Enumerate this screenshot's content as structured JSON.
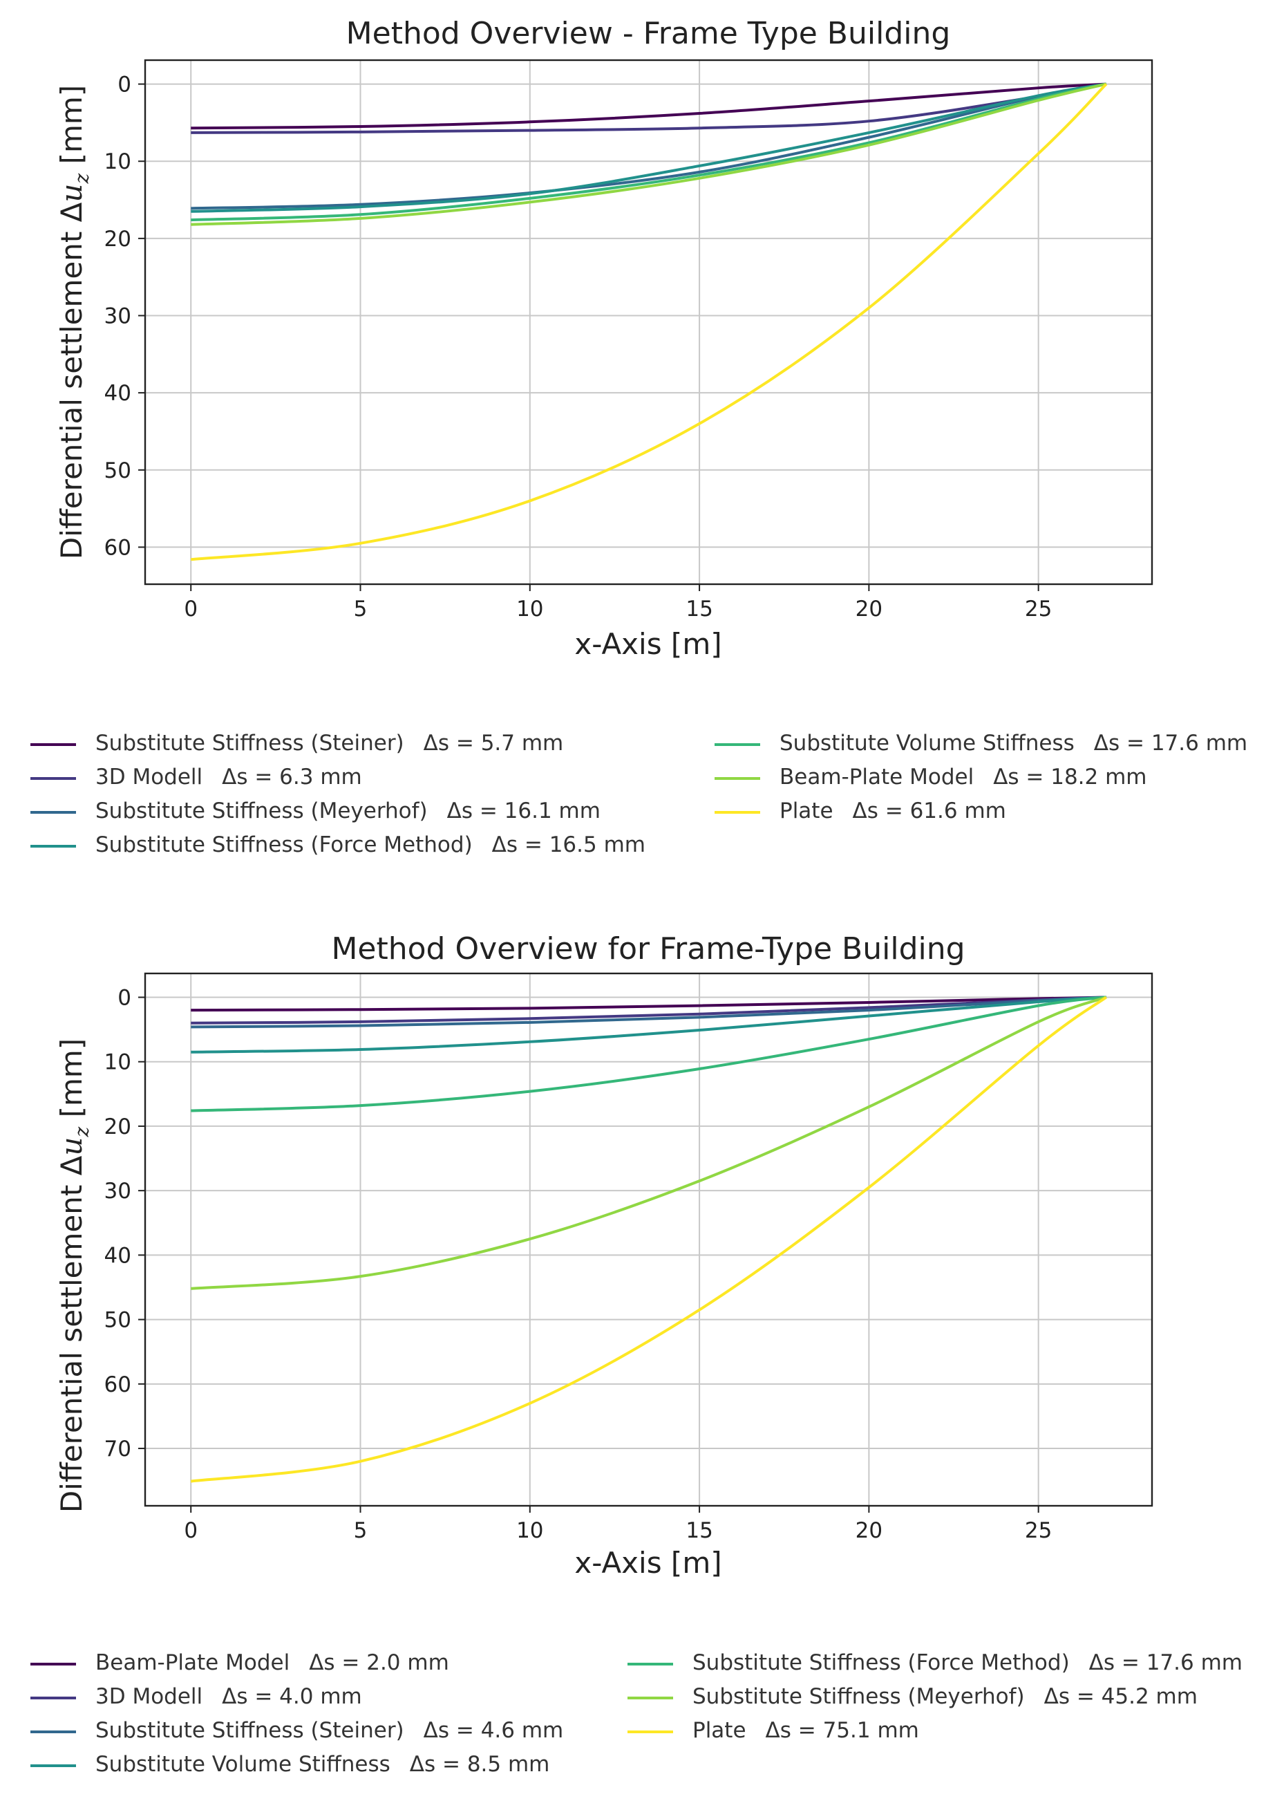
{
  "charts": [
    {
      "legend_left": [
        {
          "label": "Substitute Stiffness (Steiner)",
          "metric": "Δs = 5.7 mm"
        },
        {
          "label": "3D Modell",
          "metric": "Δs = 6.3 mm"
        },
        {
          "label": "Substitute Stiffness (Meyerhof)",
          "metric": "Δs = 16.1 mm"
        },
        {
          "label": "Substitute Stiffness (Force Method)",
          "metric": "Δs = 16.5 mm"
        }
      ],
      "legend_right": [
        {
          "label": "Substitute Volume Stiffness",
          "metric": "Δs = 17.6 mm"
        },
        {
          "label": "Beam-Plate Model",
          "metric": "Δs = 18.2 mm"
        },
        {
          "label": "Plate",
          "metric": "Δs = 61.6 mm"
        }
      ]
    },
    {
      "legend_left": [
        {
          "label": "Beam-Plate Model",
          "metric": "Δs = 2.0 mm"
        },
        {
          "label": "3D Modell",
          "metric": "Δs = 4.0 mm"
        },
        {
          "label": "Substitute Stiffness (Steiner)",
          "metric": "Δs = 4.6 mm"
        },
        {
          "label": "Substitute Volume Stiffness",
          "metric": "Δs = 8.5 mm"
        }
      ],
      "legend_right": [
        {
          "label": "Substitute Stiffness (Force Method)",
          "metric": "Δs = 17.6 mm"
        },
        {
          "label": "Substitute Stiffness (Meyerhof)",
          "metric": "Δs = 45.2 mm"
        },
        {
          "label": "Plate",
          "metric": "Δs = 75.1 mm"
        }
      ]
    }
  ],
  "chart_data": [
    {
      "type": "line",
      "title": "Method Overview - Frame Type Building",
      "xlabel": "x-Axis [m]",
      "ylabel": "Differential settlement Δu_z [mm]",
      "xlim": [
        -1.35,
        28.35
      ],
      "ylim": [
        64.8,
        -3.1
      ],
      "y_inverted": true,
      "grid": true,
      "xticks": [
        0,
        5,
        10,
        15,
        20,
        25
      ],
      "yticks": [
        0,
        10,
        20,
        30,
        40,
        50,
        60
      ],
      "legend_position": "below",
      "series": [
        {
          "name": "Substitute Stiffness (Steiner)",
          "color": "#440154",
          "x": [
            0,
            5,
            10,
            15,
            20,
            25,
            27
          ],
          "y": [
            5.7,
            5.5,
            4.9,
            3.8,
            2.2,
            0.5,
            0
          ]
        },
        {
          "name": "3D Modell",
          "color": "#443983",
          "x": [
            0,
            5,
            10,
            15,
            20,
            25,
            27
          ],
          "y": [
            6.3,
            6.2,
            6.0,
            5.7,
            4.8,
            1.6,
            0
          ]
        },
        {
          "name": "Substitute Stiffness (Meyerhof)",
          "color": "#31688e",
          "x": [
            0,
            5,
            10,
            15,
            20,
            25,
            27
          ],
          "y": [
            16.1,
            15.6,
            14.1,
            11.4,
            6.9,
            1.6,
            0
          ]
        },
        {
          "name": "Substitute Stiffness (Force Method)",
          "color": "#21918c",
          "x": [
            0,
            5,
            10,
            15,
            20,
            25,
            27
          ],
          "y": [
            16.5,
            15.9,
            14.2,
            10.6,
            6.3,
            1.5,
            0
          ]
        },
        {
          "name": "Substitute Volume Stiffness",
          "color": "#35b779",
          "x": [
            0,
            5,
            10,
            15,
            20,
            25,
            27
          ],
          "y": [
            17.6,
            16.9,
            14.8,
            11.8,
            7.6,
            1.9,
            0
          ]
        },
        {
          "name": "Beam-Plate Model",
          "color": "#90d743",
          "x": [
            0,
            5,
            10,
            15,
            20,
            25,
            27
          ],
          "y": [
            18.2,
            17.4,
            15.3,
            12.2,
            7.9,
            2.1,
            0
          ]
        },
        {
          "name": "Plate",
          "color": "#fde725",
          "x": [
            0,
            5,
            10,
            15,
            20,
            25,
            27
          ],
          "y": [
            61.6,
            59.5,
            54.0,
            44.0,
            29.0,
            9.0,
            0
          ]
        }
      ]
    },
    {
      "type": "line",
      "title": "Method Overview for Frame-Type Building",
      "xlabel": "x-Axis [m]",
      "ylabel": "Differential settlement Δu_z [mm]",
      "xlim": [
        -1.35,
        28.35
      ],
      "ylim": [
        78.9,
        -3.7
      ],
      "y_inverted": true,
      "grid": true,
      "xticks": [
        0,
        5,
        10,
        15,
        20,
        25
      ],
      "yticks": [
        0,
        10,
        20,
        30,
        40,
        50,
        60,
        70
      ],
      "legend_position": "below",
      "series": [
        {
          "name": "Beam-Plate Model",
          "color": "#440154",
          "x": [
            0,
            5,
            10,
            15,
            20,
            25,
            27
          ],
          "y": [
            2.0,
            1.9,
            1.7,
            1.3,
            0.8,
            0.2,
            0
          ]
        },
        {
          "name": "3D Modell",
          "color": "#443983",
          "x": [
            0,
            5,
            10,
            15,
            20,
            25,
            27
          ],
          "y": [
            4.0,
            3.8,
            3.3,
            2.6,
            1.6,
            0.4,
            0
          ]
        },
        {
          "name": "Substitute Stiffness (Steiner)",
          "color": "#31688e",
          "x": [
            0,
            5,
            10,
            15,
            20,
            25,
            27
          ],
          "y": [
            4.6,
            4.4,
            3.9,
            3.1,
            2.0,
            0.5,
            0
          ]
        },
        {
          "name": "Substitute Volume Stiffness",
          "color": "#21918c",
          "x": [
            0,
            5,
            10,
            15,
            20,
            25,
            27
          ],
          "y": [
            8.5,
            8.1,
            6.9,
            5.1,
            2.9,
            0.7,
            0
          ]
        },
        {
          "name": "Substitute Stiffness (Force Method)",
          "color": "#35b779",
          "x": [
            0,
            5,
            10,
            15,
            20,
            25,
            27
          ],
          "y": [
            17.6,
            16.8,
            14.6,
            11.1,
            6.5,
            1.3,
            0
          ]
        },
        {
          "name": "Substitute Stiffness (Meyerhof)",
          "color": "#90d743",
          "x": [
            0,
            5,
            10,
            15,
            20,
            25,
            27
          ],
          "y": [
            45.2,
            43.3,
            37.5,
            28.5,
            17.0,
            3.8,
            0
          ]
        },
        {
          "name": "Plate",
          "color": "#fde725",
          "x": [
            0,
            5,
            10,
            15,
            20,
            25,
            27
          ],
          "y": [
            75.1,
            72.0,
            63.0,
            48.5,
            29.5,
            7.5,
            0
          ]
        }
      ]
    }
  ]
}
